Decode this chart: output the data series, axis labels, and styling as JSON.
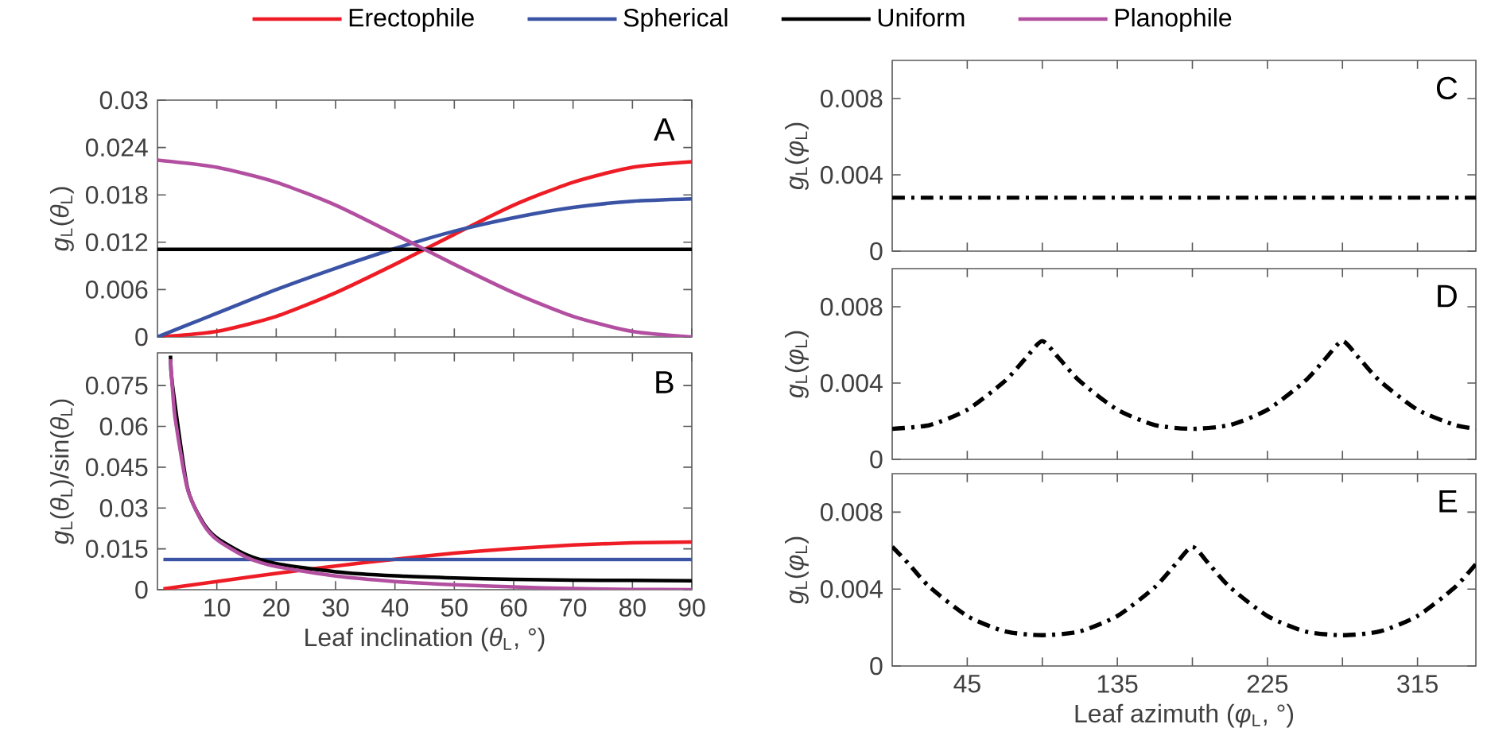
{
  "chart_data": [
    {
      "type": "line",
      "ylabel": "*g*$_{L}$(*θ*$_{L}$)",
      "xlim": [
        0,
        90
      ],
      "ylim": [
        0,
        0.03
      ],
      "xticks": [
        10,
        20,
        30,
        40,
        50,
        60,
        70,
        80,
        90
      ],
      "yticks": [
        0,
        0.006,
        0.012,
        0.018,
        0.024,
        0.03
      ],
      "tick_labels": "y",
      "legend": "top",
      "annotations": [
        "A"
      ],
      "x": [
        0,
        10,
        20,
        30,
        40,
        50,
        60,
        70,
        80,
        90
      ],
      "series": [
        {
          "name": "Erectophile",
          "color": "#ee1c25",
          "values": [
            0,
            0.0007,
            0.0026,
            0.0056,
            0.0092,
            0.013,
            0.0167,
            0.0196,
            0.0215,
            0.0222
          ]
        },
        {
          "name": "Spherical",
          "color": "#3a53a4",
          "values": [
            0,
            0.003,
            0.006,
            0.0087,
            0.0112,
            0.0134,
            0.0151,
            0.0164,
            0.0172,
            0.0175
          ]
        },
        {
          "name": "Uniform",
          "color": "#000000",
          "values": [
            0.0111,
            0.0111,
            0.0111,
            0.0111,
            0.0111,
            0.0111,
            0.0111,
            0.0111,
            0.0111,
            0.0111
          ]
        },
        {
          "name": "Planophile",
          "color": "#b34fa0",
          "values": [
            0.0224,
            0.0215,
            0.0196,
            0.0167,
            0.013,
            0.0092,
            0.0056,
            0.0026,
            0.0007,
            0
          ]
        }
      ]
    },
    {
      "type": "line",
      "ylabel": "*g*$_{L}$(*θ*$_{L}$)/sin(*θ*$_{L}$)",
      "xlabel": "Leaf inclination (*θ*$_{L}$, °)",
      "xlim": [
        0,
        90
      ],
      "ylim": [
        0,
        0.087
      ],
      "xticks": [
        10,
        20,
        30,
        40,
        50,
        60,
        70,
        80,
        90
      ],
      "yticks": [
        0,
        0.015,
        0.03,
        0.045,
        0.06,
        0.075
      ],
      "annotations": [
        "B"
      ],
      "series": [
        {
          "color": "#ee1c25",
          "x": [
            1,
            10,
            20,
            30,
            40,
            50,
            60,
            70,
            80,
            90
          ],
          "values": [
            0.0003,
            0.003,
            0.006,
            0.0087,
            0.0112,
            0.0134,
            0.0151,
            0.0164,
            0.0172,
            0.0175
          ]
        },
        {
          "color": "#3a53a4",
          "x": [
            1,
            90
          ],
          "values": [
            0.0111,
            0.0111
          ]
        },
        {
          "color": "#000000",
          "x": [
            2.2,
            2.5,
            5,
            7.5,
            10,
            15,
            20,
            30,
            40,
            50,
            60,
            70,
            80,
            90
          ],
          "values": [
            0.086,
            0.0757,
            0.0379,
            0.0253,
            0.019,
            0.0128,
            0.0096,
            0.0066,
            0.0051,
            0.0043,
            0.0038,
            0.0035,
            0.0034,
            0.0033
          ]
        },
        {
          "color": "#b34fa0",
          "x": [
            2.2,
            2.5,
            3,
            5,
            7.5,
            10,
            15,
            20,
            30,
            40,
            50,
            60,
            70,
            80,
            90
          ],
          "values": [
            0.0847,
            0.0747,
            0.0627,
            0.0375,
            0.0249,
            0.0184,
            0.0119,
            0.0085,
            0.005,
            0.003,
            0.0018,
            0.001,
            0.0004,
            0.0001,
            0
          ]
        }
      ]
    },
    {
      "type": "line",
      "ylabel": "*g*$_{L}$(*φ*$_{L}$)",
      "xlim": [
        0,
        350
      ],
      "ylim": [
        0,
        0.01
      ],
      "xticks": [
        45,
        {
          "value": 90,
          "label": null
        },
        135,
        {
          "value": 180,
          "label": null
        },
        225,
        {
          "value": 270,
          "label": null
        },
        315
      ],
      "yticks": [
        0,
        0.004,
        0.008
      ],
      "tick_labels": "y",
      "annotations": [
        "C"
      ],
      "line_style": "dashdot",
      "series": [
        {
          "color": "#000000",
          "x": [
            0,
            350
          ],
          "values": [
            0.0028,
            0.0028
          ]
        }
      ]
    },
    {
      "type": "line",
      "ylabel": "*g*$_{L}$(*φ*$_{L}$)",
      "xlim": [
        0,
        350
      ],
      "ylim": [
        0,
        0.01
      ],
      "xticks": [
        45,
        {
          "value": 90,
          "label": null
        },
        135,
        {
          "value": 180,
          "label": null
        },
        225,
        {
          "value": 270,
          "label": null
        },
        315
      ],
      "yticks": [
        0,
        0.004,
        0.008
      ],
      "tick_labels": "y",
      "annotations": [
        "D"
      ],
      "line_style": "dashdot",
      "series": [
        {
          "color": "#000000",
          "x": [
            0,
            22.5,
            45,
            67.5,
            80,
            90,
            100,
            112.5,
            135,
            157.5,
            180,
            202.5,
            225,
            247.5,
            260,
            270,
            280,
            292.5,
            315,
            337.5,
            350
          ],
          "values": [
            0.0016,
            0.0018,
            0.0026,
            0.0041,
            0.0053,
            0.0062,
            0.0053,
            0.0041,
            0.0026,
            0.0018,
            0.0016,
            0.0018,
            0.0026,
            0.0041,
            0.0053,
            0.0062,
            0.0053,
            0.0041,
            0.0026,
            0.0018,
            0.0016
          ]
        }
      ]
    },
    {
      "type": "line",
      "ylabel": "*g*$_{L}$(*φ*$_{L}$)",
      "xlabel": "Leaf azimuth (*φ*$_{L}$, °)",
      "xlim": [
        0,
        350
      ],
      "ylim": [
        0,
        0.01
      ],
      "xticks": [
        45,
        {
          "value": 90,
          "label": null
        },
        135,
        {
          "value": 180,
          "label": null
        },
        225,
        {
          "value": 270,
          "label": null
        },
        315
      ],
      "yticks": [
        0,
        0.004,
        0.008
      ],
      "annotations": [
        "E"
      ],
      "line_style": "dashdot",
      "series": [
        {
          "color": "#000000",
          "x": [
            0,
            10,
            22.5,
            45,
            67.5,
            90,
            112.5,
            135,
            157.5,
            170,
            180,
            190,
            202.5,
            225,
            247.5,
            270,
            292.5,
            315,
            337.5,
            350
          ],
          "values": [
            0.0062,
            0.0053,
            0.0041,
            0.0026,
            0.0018,
            0.0016,
            0.0018,
            0.0026,
            0.0041,
            0.0053,
            0.0062,
            0.0053,
            0.0041,
            0.0026,
            0.0018,
            0.0016,
            0.0018,
            0.0026,
            0.0041,
            0.0053
          ]
        }
      ]
    }
  ]
}
